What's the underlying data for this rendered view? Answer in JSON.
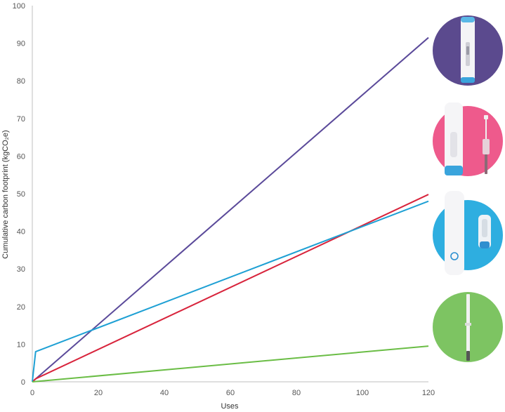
{
  "chart_data": {
    "type": "line",
    "xlabel": "Uses",
    "ylabel": "Cumulative carbon footprint (kgCO₂e)",
    "xlim": [
      0,
      120
    ],
    "ylim": [
      0,
      100
    ],
    "x_ticks": [
      "0",
      "20",
      "40",
      "60",
      "80",
      "100",
      "120"
    ],
    "y_ticks": [
      "0",
      "10",
      "20",
      "30",
      "40",
      "50",
      "60",
      "70",
      "80",
      "90",
      "100"
    ],
    "grid": false,
    "legend": "none",
    "series": [
      {
        "color": "#5b4a9a",
        "points": [
          [
            0,
            0
          ],
          [
            120,
            91.5
          ]
        ]
      },
      {
        "color": "#d8243c",
        "points": [
          [
            0,
            0
          ],
          [
            1,
            0.8
          ],
          [
            120,
            49.8
          ]
        ]
      },
      {
        "color": "#1ea0d4",
        "points": [
          [
            0,
            0
          ],
          [
            1,
            8.0
          ],
          [
            120,
            48.0
          ]
        ]
      },
      {
        "color": "#6abd45",
        "points": [
          [
            0,
            0
          ],
          [
            120,
            9.5
          ]
        ]
      }
    ],
    "device_icons": [
      {
        "name": "purple-device-icon",
        "bg": "#5b4a8e"
      },
      {
        "name": "pink-device-icon",
        "bg": "#ee5a8c"
      },
      {
        "name": "blue-device-icon",
        "bg": "#2eaee0"
      },
      {
        "name": "green-device-icon",
        "bg": "#7dc462"
      }
    ]
  }
}
